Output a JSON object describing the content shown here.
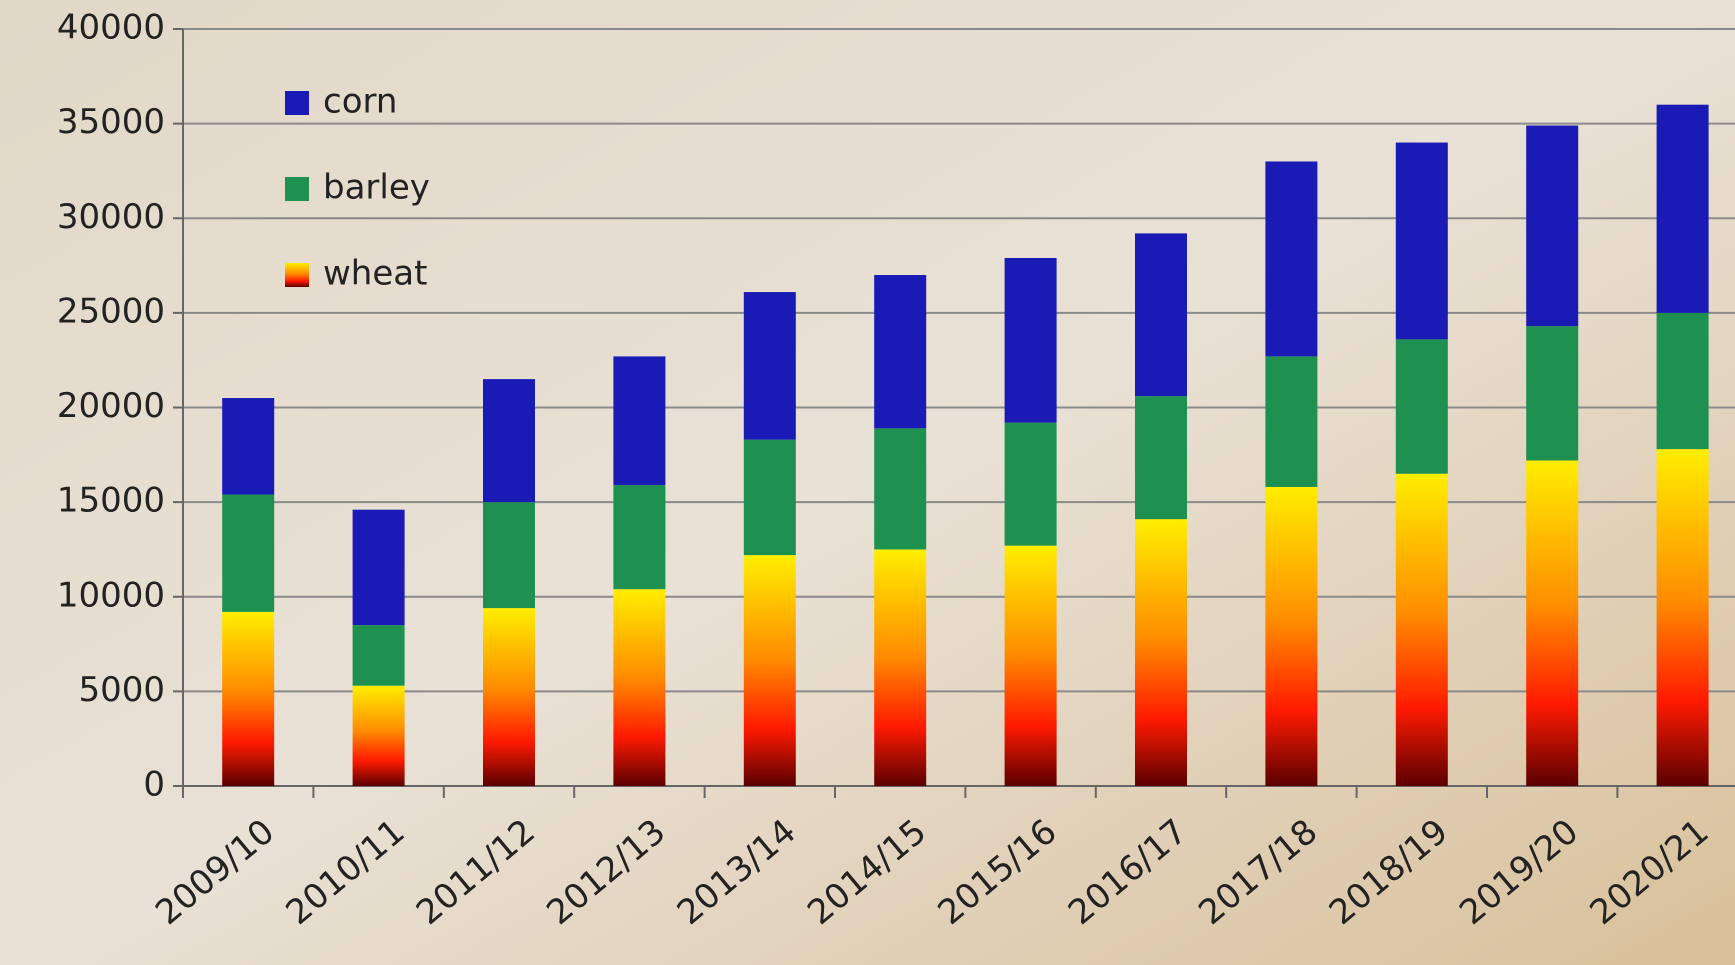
{
  "chart_data": {
    "type": "stacked-bar",
    "categories": [
      "2009/10",
      "2010/11",
      "2011/12",
      "2012/13",
      "2013/14",
      "2014/15",
      "2015/16",
      "2016/17",
      "2017/18",
      "2018/19",
      "2019/20",
      "2020/21"
    ],
    "series": [
      {
        "name": "wheat",
        "color": "#ff8c00",
        "values": [
          9200,
          5300,
          9400,
          10400,
          12200,
          12500,
          12700,
          14100,
          15800,
          16500,
          17200,
          17800
        ]
      },
      {
        "name": "barley",
        "color": "#1e9150",
        "values": [
          6200,
          3200,
          5600,
          5500,
          6100,
          6400,
          6500,
          6500,
          6900,
          7100,
          7100,
          7200
        ]
      },
      {
        "name": "corn",
        "color": "#1a1ab4",
        "values": [
          5100,
          6100,
          6500,
          6800,
          7800,
          8100,
          8700,
          8600,
          10300,
          10400,
          10600,
          11000
        ]
      }
    ],
    "ylim": [
      0,
      40000
    ],
    "yticks": [
      0,
      5000,
      10000,
      15000,
      20000,
      25000,
      30000,
      35000,
      40000
    ],
    "grid": true
  }
}
